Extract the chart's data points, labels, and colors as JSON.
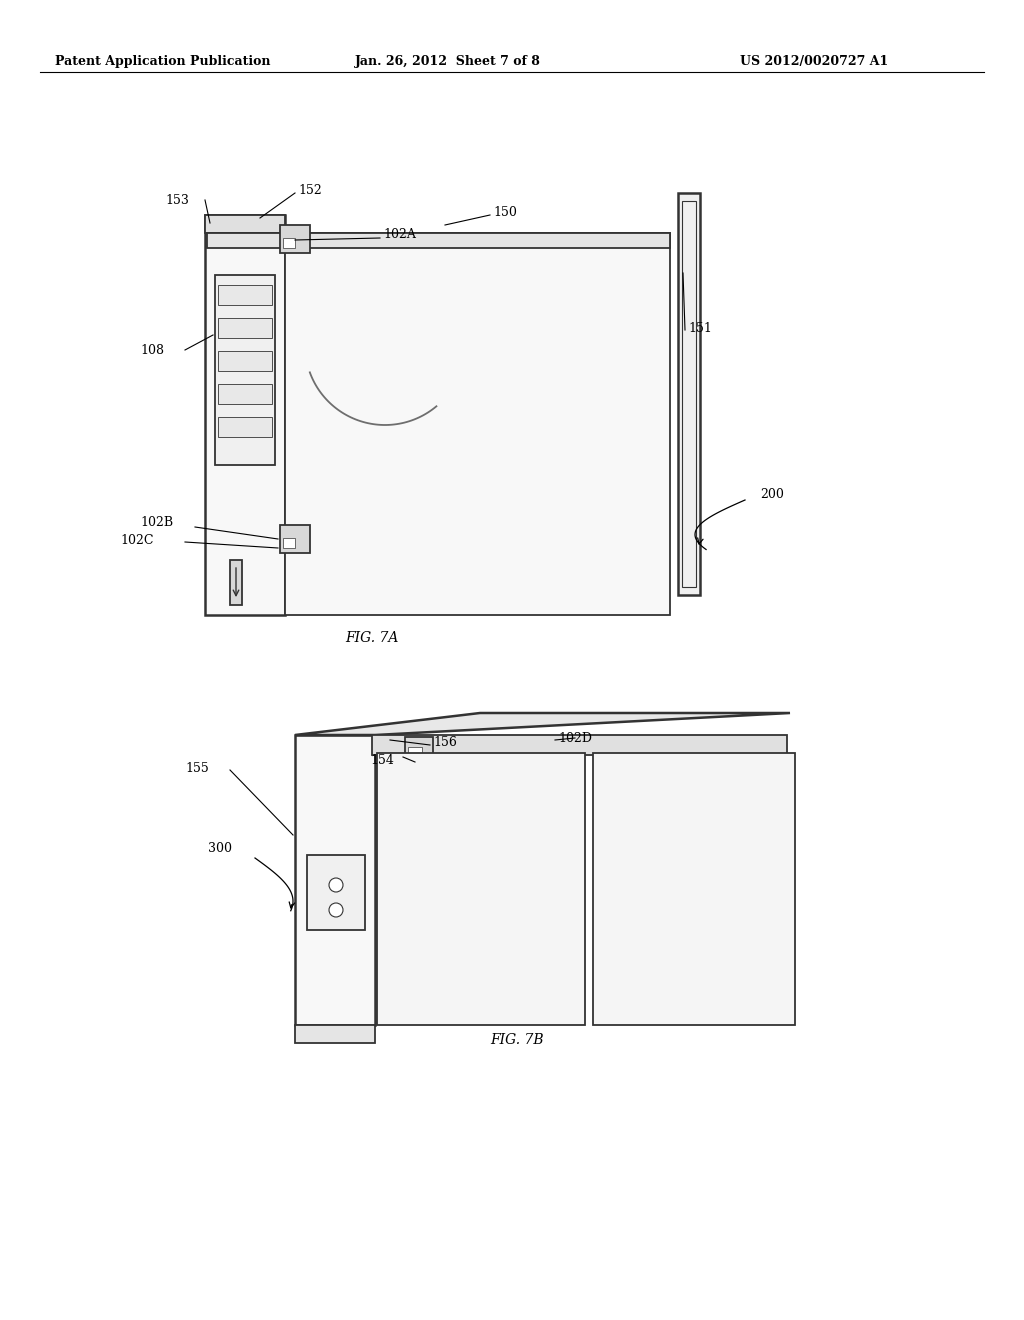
{
  "bg_color": "#ffffff",
  "header_left": "Patent Application Publication",
  "header_center": "Jan. 26, 2012  Sheet 7 of 8",
  "header_right": "US 2012/0020727 A1",
  "fig7a_label": "FIG. 7A",
  "fig7b_label": "FIG. 7B",
  "line_color": "#333333",
  "label_color": "#000000"
}
